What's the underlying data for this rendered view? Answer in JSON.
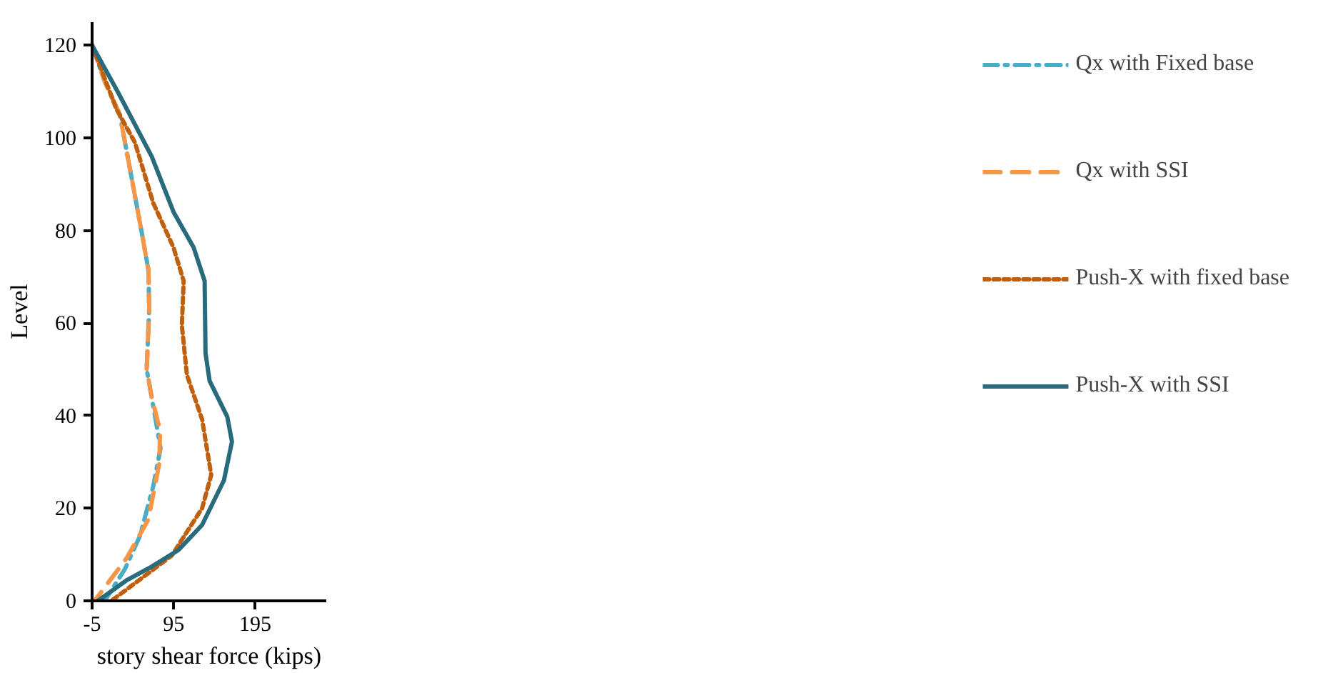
{
  "chart_data": {
    "type": "line",
    "xlabel": "story shear force (kips)",
    "ylabel": "Level",
    "xlim": [
      -5,
      282
    ],
    "xticks": [
      -5,
      95,
      195
    ],
    "ylim": [
      0,
      125
    ],
    "yticks": [
      0,
      20,
      40,
      60,
      80,
      100,
      120
    ],
    "grid": false,
    "legend": "right",
    "marker": "none",
    "series": [
      {
        "name": "Qx with Fixed base",
        "color": "#4bacc6",
        "line_style": "dashdot",
        "x": [
          -5,
          10.4,
          29,
          45.4,
          56.7,
          64,
          65,
          61.9,
          68,
          78.9,
          70,
          53.6,
          35,
          10.4
        ],
        "values": [
          120,
          112.2,
          105,
          89.5,
          78.7,
          71.5,
          63.1,
          50,
          44,
          33,
          24.8,
          14,
          6.8,
          0
        ]
      },
      {
        "name": "Qx with SSI",
        "color": "#f79646",
        "line_style": "longdash",
        "x": [
          -5,
          10.4,
          29,
          45.4,
          56.7,
          64,
          65,
          61.9,
          68,
          78.3,
          77.3,
          64,
          37.2,
          -1.9
        ],
        "values": [
          120,
          112.2,
          105,
          89.5,
          78.7,
          71.5,
          63.1,
          50,
          44,
          36.8,
          29.6,
          17.6,
          9.2,
          0
        ]
      },
      {
        "name": "Push-X with fixed base",
        "color": "#c0600f",
        "line_style": "dashed",
        "x": [
          -5,
          24.8,
          47.5,
          70,
          94.8,
          107.2,
          105,
          111.2,
          129.8,
          141,
          129.8,
          92.7,
          47.5,
          18.6
        ],
        "values": [
          120,
          106.2,
          99,
          85.9,
          76.3,
          69.1,
          59.5,
          48.8,
          39.2,
          27.2,
          20,
          9.8,
          3.8,
          0
        ]
      },
      {
        "name": "Push-X with SSI",
        "color": "#276b7c",
        "line_style": "solid",
        "x": [
          -5,
          26.9,
          68,
          94.8,
          119.5,
          132.9,
          134,
          139,
          160.6,
          166.4,
          156.5,
          129.8,
          101,
          68,
          37,
          2
        ],
        "values": [
          120,
          109.8,
          96,
          84,
          76.3,
          69.1,
          53.5,
          47.5,
          39.8,
          34.4,
          26,
          16.4,
          11,
          7.4,
          4.4,
          0
        ]
      }
    ]
  }
}
